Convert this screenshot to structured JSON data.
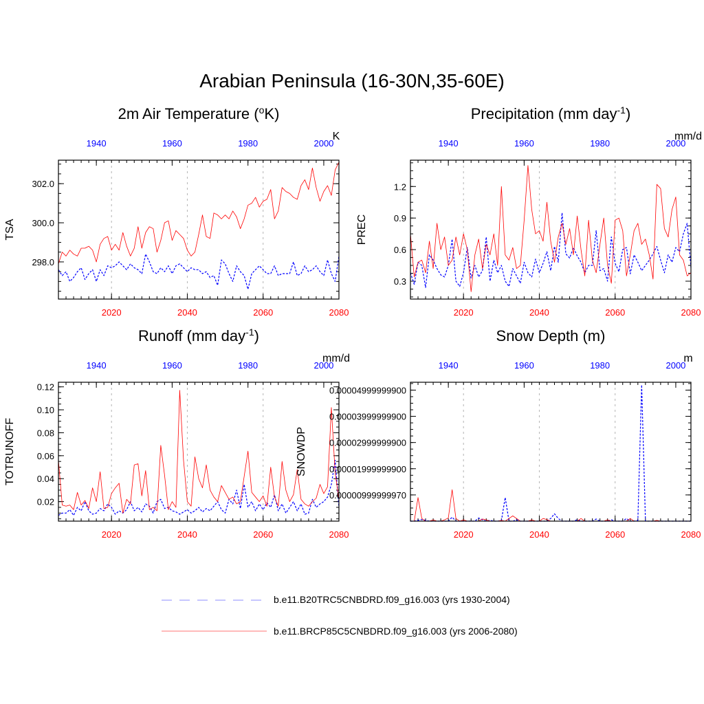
{
  "suptitle": "Arabian Peninsula (16-30N,35-60E)",
  "colors": {
    "historical": "#0000ff",
    "future": "#ff0000",
    "top_axis_labels": "#0000ff",
    "bottom_axis_labels": "#ff0000",
    "gridline": "#b3b3b3"
  },
  "legend": {
    "items": [
      {
        "label": "b.e11.B20TRC5CNBDRD.f09_g16.003 (yrs 1930-2004)",
        "style": "dashed",
        "color": "#0000ff"
      },
      {
        "label": "b.e11.BRCP85C5CNBDRD.f09_g16.003 (yrs 2006-2080)",
        "style": "solid",
        "color": "#ff0000"
      }
    ]
  },
  "chart_data": [
    {
      "id": "tsa",
      "type": "line",
      "title": "2m Air Temperature (oK)",
      "title_main": "2m Air Temperature (",
      "title_sup": "o",
      "title_end": "K)",
      "ylabel": "TSA",
      "units": "K",
      "ylim": [
        296.1,
        303.2
      ],
      "yticks": [
        298.0,
        300.0,
        302.0
      ],
      "ytick_labels": [
        "298.0",
        "300.0",
        "302.0"
      ],
      "bottom_xlim": [
        2006,
        2080
      ],
      "bottom_xticks": [
        2020,
        2040,
        2060,
        2080
      ],
      "top_xlim": [
        1930,
        2004
      ],
      "top_xticks": [
        1940,
        1960,
        1980,
        2000
      ],
      "series": [
        {
          "name": "b.e11.B20TRC5CNBDRD.f09_g16.003 (yrs 1930-2004)",
          "x_start": 1930,
          "style": "dashed",
          "values": [
            297.6,
            297.3,
            297.5,
            297.0,
            297.2,
            297.5,
            297.7,
            297.1,
            297.4,
            297.6,
            297.0,
            297.6,
            297.3,
            297.8,
            297.7,
            297.8,
            298.0,
            297.8,
            297.6,
            297.9,
            297.7,
            297.6,
            297.4,
            298.4,
            298.0,
            297.5,
            297.4,
            297.7,
            297.5,
            297.8,
            297.4,
            297.8,
            297.9,
            297.7,
            297.5,
            297.7,
            297.6,
            297.6,
            297.4,
            297.5,
            297.2,
            297.3,
            296.8,
            298.1,
            297.9,
            297.4,
            297.0,
            297.8,
            297.5,
            297.3,
            296.6,
            297.4,
            297.6,
            297.8,
            297.6,
            297.4,
            297.4,
            297.8,
            297.3,
            297.4,
            297.4,
            297.4,
            298.0,
            297.3,
            297.4,
            297.8,
            297.5,
            297.6,
            297.8,
            297.5,
            297.3,
            298.1,
            297.4,
            297.0,
            298.3
          ]
        },
        {
          "name": "b.e11.BRCP85C5CNBDRD.f09_g16.003 (yrs 2006-2080)",
          "x_start": 2006,
          "style": "solid",
          "values": [
            297.9,
            298.5,
            298.3,
            298.6,
            298.4,
            298.3,
            298.7,
            298.7,
            298.8,
            298.6,
            298.0,
            298.9,
            299.2,
            299.3,
            298.6,
            298.9,
            298.6,
            299.5,
            298.8,
            298.3,
            298.7,
            299.8,
            298.7,
            299.5,
            299.8,
            299.7,
            298.5,
            299.1,
            300.0,
            300.1,
            299.1,
            299.6,
            299.4,
            299.2,
            298.6,
            298.3,
            298.5,
            299.4,
            300.4,
            299.3,
            299.2,
            300.5,
            300.4,
            300.2,
            300.4,
            300.2,
            300.6,
            300.3,
            299.7,
            300.2,
            300.9,
            301.0,
            301.3,
            300.8,
            301.1,
            301.2,
            301.7,
            300.2,
            300.6,
            301.8,
            301.6,
            301.5,
            301.3,
            301.2,
            301.9,
            302.2,
            301.7,
            302.8,
            301.8,
            301.1,
            301.6,
            301.9,
            301.4,
            302.7,
            303.1
          ]
        }
      ]
    },
    {
      "id": "prec",
      "type": "line",
      "title": "Precipitation (mm day-1)",
      "title_main": "Precipitation (mm day",
      "title_sup": "-1",
      "title_end": ")",
      "ylabel": "PREC",
      "units": "mm/d",
      "ylim": [
        0.13,
        1.45
      ],
      "yticks": [
        0.3,
        0.6,
        0.9,
        1.2
      ],
      "ytick_labels": [
        "0.3",
        "0.6",
        "0.9",
        "1.2"
      ],
      "bottom_xlim": [
        2006,
        2080
      ],
      "bottom_xticks": [
        2020,
        2040,
        2060,
        2080
      ],
      "top_xlim": [
        1930,
        2004
      ],
      "top_xticks": [
        1940,
        1960,
        1980,
        2000
      ],
      "series": [
        {
          "name": "b.e11.B20TRC5CNBDRD.f09_g16.003 (yrs 1930-2004)",
          "x_start": 1930,
          "style": "dashed",
          "values": [
            0.38,
            0.27,
            0.48,
            0.45,
            0.24,
            0.55,
            0.5,
            0.42,
            0.36,
            0.34,
            0.45,
            0.7,
            0.3,
            0.25,
            0.38,
            0.62,
            0.33,
            0.45,
            0.34,
            0.4,
            0.72,
            0.3,
            0.5,
            0.38,
            0.45,
            0.3,
            0.25,
            0.42,
            0.35,
            0.28,
            0.48,
            0.38,
            0.34,
            0.51,
            0.38,
            0.47,
            0.58,
            0.4,
            0.63,
            0.48,
            0.95,
            0.56,
            0.52,
            0.62,
            0.54,
            0.48,
            0.38,
            0.45,
            0.45,
            0.78,
            0.4,
            0.42,
            0.3,
            0.72,
            0.47,
            0.39,
            0.6,
            0.62,
            0.37,
            0.55,
            0.48,
            0.4,
            0.45,
            0.5,
            0.56,
            0.63,
            0.5,
            0.38,
            0.55,
            0.48,
            0.62,
            0.58,
            0.75,
            0.85,
            0.43
          ]
        },
        {
          "name": "b.e11.BRCP85C5CNBDRD.f09_g16.003 (yrs 2006-2080)",
          "x_start": 2006,
          "style": "solid",
          "values": [
            0.75,
            0.34,
            0.48,
            0.5,
            0.38,
            0.68,
            0.42,
            0.85,
            0.6,
            0.72,
            0.45,
            0.5,
            0.72,
            0.55,
            0.75,
            0.6,
            0.2,
            0.55,
            0.7,
            0.42,
            0.65,
            0.55,
            0.75,
            0.45,
            1.2,
            0.55,
            0.5,
            0.62,
            0.42,
            0.45,
            0.88,
            1.4,
            0.98,
            0.75,
            0.78,
            0.68,
            1.05,
            0.68,
            0.48,
            0.72,
            0.85,
            0.65,
            0.8,
            0.55,
            0.92,
            0.6,
            0.35,
            0.88,
            0.5,
            0.38,
            0.65,
            0.9,
            0.45,
            0.28,
            0.88,
            0.9,
            0.78,
            0.35,
            0.55,
            0.78,
            0.85,
            0.65,
            0.7,
            0.55,
            0.32,
            1.22,
            1.18,
            0.8,
            0.72,
            0.98,
            1.1,
            0.55,
            0.5,
            0.35,
            0.38
          ]
        }
      ]
    },
    {
      "id": "runoff",
      "type": "line",
      "title": "Runoff (mm day-1)",
      "title_main": "Runoff (mm day",
      "title_sup": "-1",
      "title_end": ")",
      "ylabel": "TOTRUNOFF",
      "units": "mm/d",
      "ylim": [
        0.003,
        0.124
      ],
      "yticks": [
        0.02,
        0.04,
        0.06,
        0.08,
        0.1,
        0.12
      ],
      "ytick_labels": [
        "0.02",
        "0.04",
        "0.06",
        "0.08",
        "0.10",
        "0.12"
      ],
      "bottom_xlim": [
        2006,
        2080
      ],
      "bottom_xticks": [
        2020,
        2040,
        2060,
        2080
      ],
      "top_xlim": [
        1930,
        2004
      ],
      "top_xticks": [
        1940,
        1960,
        1980,
        2000
      ],
      "series": [
        {
          "name": "b.e11.B20TRC5CNBDRD.f09_g16.003 (yrs 1930-2004)",
          "x_start": 1930,
          "style": "dashed",
          "values": [
            0.008,
            0.01,
            0.01,
            0.013,
            0.008,
            0.015,
            0.012,
            0.02,
            0.012,
            0.009,
            0.01,
            0.014,
            0.012,
            0.018,
            0.015,
            0.009,
            0.012,
            0.01,
            0.013,
            0.02,
            0.012,
            0.015,
            0.011,
            0.018,
            0.016,
            0.01,
            0.02,
            0.022,
            0.014,
            0.015,
            0.012,
            0.011,
            0.009,
            0.011,
            0.013,
            0.01,
            0.012,
            0.015,
            0.011,
            0.014,
            0.012,
            0.016,
            0.02,
            0.013,
            0.01,
            0.022,
            0.018,
            0.03,
            0.014,
            0.035,
            0.015,
            0.02,
            0.012,
            0.018,
            0.013,
            0.019,
            0.015,
            0.026,
            0.012,
            0.018,
            0.01,
            0.015,
            0.02,
            0.012,
            0.018,
            0.009,
            0.01,
            0.022,
            0.015,
            0.018,
            0.02,
            0.024,
            0.035,
            0.056,
            0.015
          ]
        },
        {
          "name": "b.e11.BRCP85C5CNBDRD.f09_g16.003 (yrs 2006-2080)",
          "x_start": 2006,
          "style": "solid",
          "values": [
            0.056,
            0.017,
            0.016,
            0.017,
            0.013,
            0.028,
            0.017,
            0.021,
            0.014,
            0.032,
            0.02,
            0.046,
            0.014,
            0.015,
            0.027,
            0.032,
            0.036,
            0.01,
            0.022,
            0.018,
            0.052,
            0.053,
            0.025,
            0.047,
            0.013,
            0.015,
            0.012,
            0.069,
            0.043,
            0.013,
            0.02,
            0.015,
            0.117,
            0.056,
            0.02,
            0.016,
            0.059,
            0.04,
            0.032,
            0.052,
            0.03,
            0.024,
            0.02,
            0.034,
            0.028,
            0.022,
            0.024,
            0.018,
            0.02,
            0.042,
            0.064,
            0.028,
            0.024,
            0.02,
            0.025,
            0.016,
            0.05,
            0.024,
            0.016,
            0.055,
            0.03,
            0.02,
            0.026,
            0.048,
            0.022,
            0.018,
            0.016,
            0.02,
            0.023,
            0.035,
            0.027,
            0.033,
            0.102,
            0.045,
            0.022
          ]
        }
      ]
    },
    {
      "id": "snowdp",
      "type": "line",
      "title": "Snow Depth (m)",
      "title_main": "Snow Depth (m)",
      "title_sup": "",
      "title_end": "",
      "ylabel": "SNOWDP",
      "units": "m",
      "ylim": [
        0,
        5.3e-05
      ],
      "yticks": [
        1e-05,
        2e-05,
        3e-05,
        4e-05,
        5e-05
      ],
      "ytick_labels": [
        "0.00000999999970",
        "0.00001999999900",
        "0.00002999999900",
        "0.00003999999900",
        "0.00004999999900"
      ],
      "bottom_xlim": [
        2006,
        2080
      ],
      "bottom_xticks": [
        2020,
        2040,
        2060,
        2080
      ],
      "top_xlim": [
        1930,
        2004
      ],
      "top_xticks": [
        1940,
        1960,
        1980,
        2000
      ],
      "series": [
        {
          "name": "b.e11.B20TRC5CNBDRD.f09_g16.003 (yrs 1930-2004)",
          "x_start": 1930,
          "style": "dashed",
          "values": [
            0,
            0,
            3e-07,
            6e-07,
            3e-07,
            0,
            0,
            0,
            0,
            0,
            0,
            1.5e-06,
            0,
            0,
            0,
            0,
            0,
            0,
            1.2e-06,
            5e-07,
            0,
            3e-07,
            0,
            0,
            2e-07,
            9e-06,
            0,
            0,
            5e-07,
            0,
            0,
            0,
            0,
            0,
            0,
            0,
            0,
            1e-06,
            2.8e-06,
            1e-06,
            0,
            0,
            0,
            0,
            5e-07,
            0,
            0,
            0,
            0,
            8e-07,
            0,
            0,
            0,
            5e-07,
            0,
            0,
            0,
            1e-06,
            0,
            0,
            3e-07,
            5.2e-05,
            0,
            0,
            0,
            0,
            0,
            0,
            0,
            0,
            0,
            0,
            0,
            0,
            0
          ]
        },
        {
          "name": "b.e11.BRCP85C5CNBDRD.f09_g16.003 (yrs 2006-2080)",
          "x_start": 2006,
          "style": "solid",
          "values": [
            0,
            0,
            9e-06,
            1e-06,
            0,
            0,
            5e-07,
            0,
            0,
            5e-07,
            1.2e-06,
            1.2e-05,
            1e-06,
            0,
            5e-07,
            0,
            0,
            0,
            0,
            8e-07,
            5e-07,
            0,
            0,
            0,
            3e-07,
            0,
            1e-06,
            2e-06,
            1e-06,
            0,
            0,
            0,
            5e-07,
            0,
            0,
            1e-06,
            6e-07,
            0,
            0,
            0,
            0,
            0,
            0,
            0,
            0,
            1e-06,
            0,
            0,
            0,
            0,
            0,
            0,
            5e-07,
            0,
            0,
            0,
            0,
            0,
            1e-06,
            0,
            0,
            0,
            0,
            0,
            0,
            3e-07,
            0,
            0,
            0,
            0,
            0,
            0,
            0,
            0,
            0
          ]
        }
      ]
    }
  ]
}
